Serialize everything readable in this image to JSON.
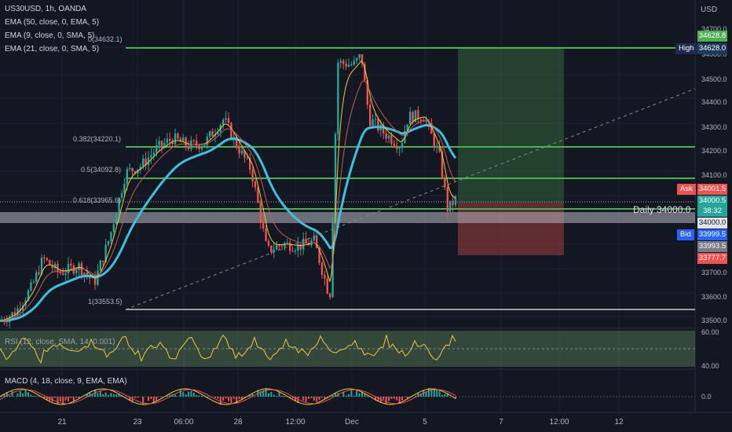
{
  "chart_header": {
    "symbol_line": "US30USD, 1h, OANDA",
    "indicators": [
      "EMA (50, close, 0, EMA, 5)",
      "EMA (9, close, 0, SMA, 5)",
      "EMA (21, close, 0, SMA, 5)"
    ]
  },
  "price_axis": {
    "currency": "USD",
    "ticks": [
      "34700.0",
      "34600.0",
      "34500.0",
      "34400.0",
      "34300.0",
      "34200.0",
      "34100.0",
      "33700.0",
      "33600.0",
      "33500.0"
    ]
  },
  "fib_labels": [
    "0(34632.1)",
    "0.382(34220.1)",
    "0.5(34092.8)",
    "0.618(33965.6)",
    "1(33553.5)"
  ],
  "annotations": {
    "daily_level": "Daily 34000.0"
  },
  "price_tags": {
    "high_label": "High",
    "high_value": "34628.0",
    "top_value": "34628.8",
    "ask_label": "Ask",
    "ask_value": "34001.5",
    "last_value": "34000.5",
    "countdown": "38:32",
    "daily_value": "34000.0",
    "bid_label": "Bid",
    "bid_value": "33999.5",
    "low1_value": "33993.5",
    "stop_value": "33777.7"
  },
  "rsi": {
    "label": "RSI (12, close, SMA, 14, 0.001)",
    "ticks": [
      "60.00",
      "40.00"
    ]
  },
  "macd": {
    "label": "MACD (4, 18, close, 9, EMA, EMA)",
    "tick": "0.0"
  },
  "time_axis": [
    "21",
    "23",
    "06:00",
    "28",
    "12:00",
    "Dec",
    "5",
    "7",
    "12:00",
    "12"
  ],
  "colors": {
    "background": "#131722",
    "up": "#26a69a",
    "down": "#ef5350",
    "ema50": "#3dc0e0",
    "ema9": "#f0c93a",
    "ema21": "#c05a5a",
    "fib_green": "#4caf50",
    "fib_grey": "#9e9e9e"
  }
}
